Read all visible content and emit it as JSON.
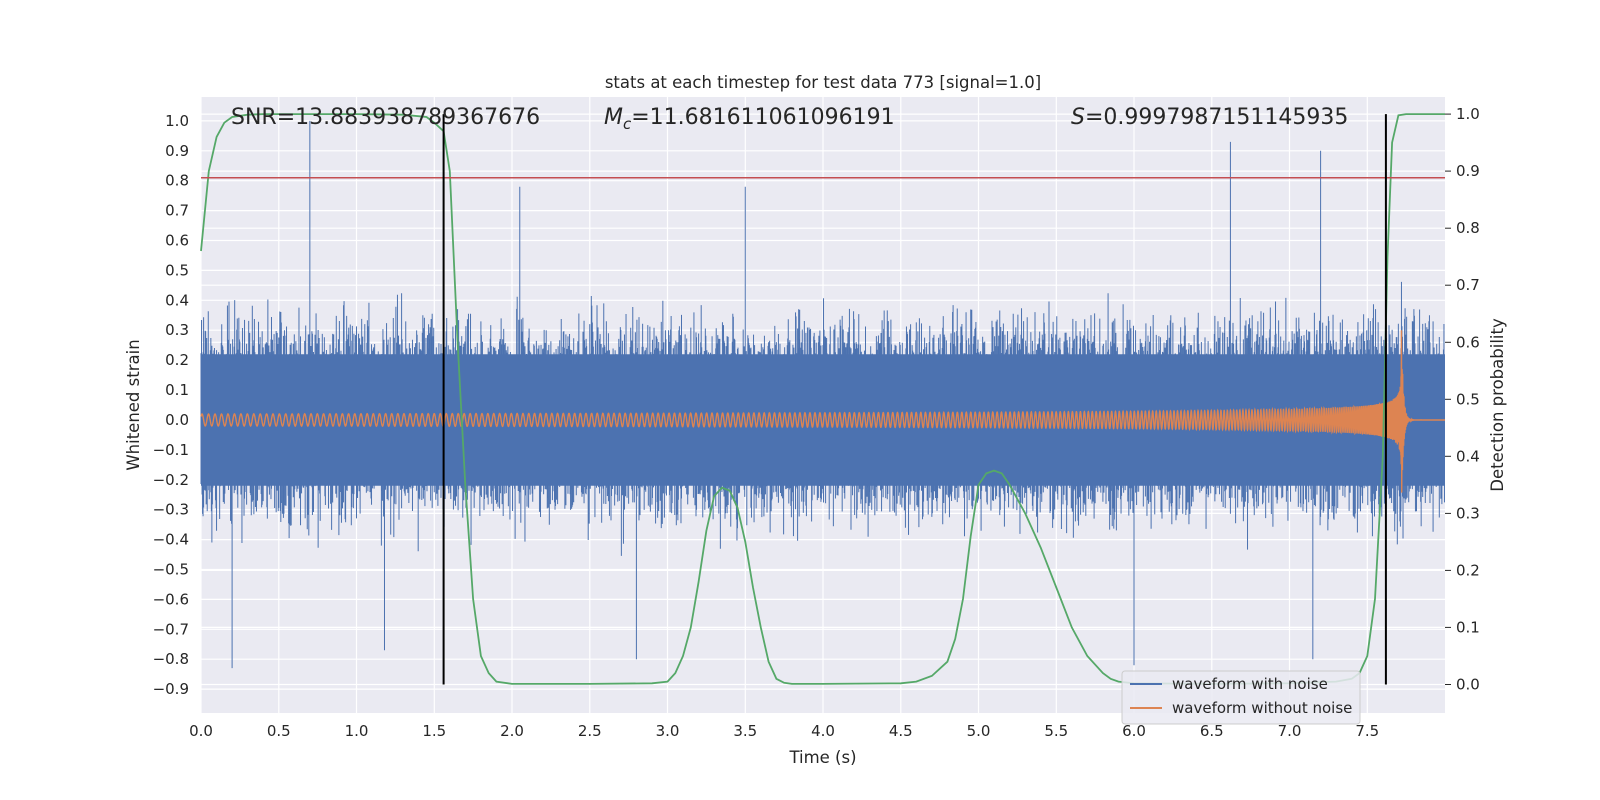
{
  "chart_data": {
    "type": "line",
    "title": "stats at each timestep for test data 773 [signal=1.0]",
    "xlabel": "Time (s)",
    "ylabel": "Whitened strain",
    "y2label": "Detection probability",
    "xlim": [
      0.0,
      8.0
    ],
    "ylim": [
      -0.98,
      1.08
    ],
    "y2lim": [
      -0.05,
      1.03
    ],
    "grid": true,
    "legend_position": "bottom-right",
    "x_ticks": [
      "0.0",
      "0.5",
      "1.0",
      "1.5",
      "2.0",
      "2.5",
      "3.0",
      "3.5",
      "4.0",
      "4.5",
      "5.0",
      "5.5",
      "6.0",
      "6.5",
      "7.0",
      "7.5"
    ],
    "y_ticks": [
      "1.0",
      "0.9",
      "0.8",
      "0.7",
      "0.6",
      "0.5",
      "0.4",
      "0.3",
      "0.2",
      "0.1",
      "0.0",
      "-0.1",
      "-0.2",
      "-0.3",
      "-0.4",
      "-0.5",
      "-0.6",
      "-0.7",
      "-0.8",
      "-0.9"
    ],
    "y2_ticks": [
      "1.0",
      "0.9",
      "0.8",
      "0.7",
      "0.6",
      "0.5",
      "0.4",
      "0.3",
      "0.2",
      "0.1",
      "0.0"
    ],
    "annotations": {
      "snr": "SNR=13.883938789367676",
      "mc_symbol": "M",
      "mc_sub": "c",
      "mc_value": "=11.681611061096191",
      "s_symbol": "S",
      "s_value": "=0.9997987151145935"
    },
    "threshold_line": {
      "y": 0.81,
      "color": "#c44e52"
    },
    "vertical_lines": [
      1.56,
      7.62
    ],
    "series": [
      {
        "name": "waveform with noise",
        "color": "#4c72b0",
        "axis": "left",
        "description_values": {
          "typical_band": [
            -0.3,
            0.3
          ],
          "max": 1.0,
          "min": -0.83
        }
      },
      {
        "name": "waveform without noise",
        "color": "#dd8452",
        "axis": "left",
        "chirp": {
          "start_amplitude": 0.02,
          "merger_time": 7.72,
          "peak_amplitude": 0.61,
          "min_amplitude": -0.48
        }
      },
      {
        "color": "#55a868",
        "axis": "right",
        "x": [
          0.0,
          0.05,
          0.1,
          0.15,
          0.2,
          0.3,
          0.4,
          0.5,
          0.7,
          1.0,
          1.3,
          1.45,
          1.5,
          1.56,
          1.6,
          1.65,
          1.7,
          1.75,
          1.8,
          1.85,
          1.9,
          2.0,
          2.5,
          2.9,
          3.0,
          3.05,
          3.1,
          3.15,
          3.2,
          3.25,
          3.3,
          3.35,
          3.4,
          3.45,
          3.5,
          3.55,
          3.6,
          3.65,
          3.7,
          3.75,
          3.8,
          4.0,
          4.5,
          4.6,
          4.7,
          4.8,
          4.85,
          4.9,
          4.95,
          5.0,
          5.05,
          5.1,
          5.15,
          5.2,
          5.3,
          5.4,
          5.5,
          5.6,
          5.7,
          5.8,
          5.85,
          5.9,
          6.0,
          6.5,
          7.0,
          7.3,
          7.4,
          7.45,
          7.5,
          7.55,
          7.6,
          7.63,
          7.66,
          7.7,
          7.75,
          7.8,
          7.9,
          8.0
        ],
        "values": [
          0.76,
          0.9,
          0.96,
          0.985,
          0.995,
          0.999,
          1.0,
          1.0,
          1.0,
          1.0,
          0.999,
          0.995,
          0.985,
          0.97,
          0.9,
          0.6,
          0.35,
          0.15,
          0.05,
          0.02,
          0.005,
          0.001,
          0.001,
          0.002,
          0.005,
          0.02,
          0.05,
          0.1,
          0.18,
          0.27,
          0.33,
          0.345,
          0.34,
          0.31,
          0.25,
          0.17,
          0.1,
          0.04,
          0.01,
          0.003,
          0.001,
          0.001,
          0.002,
          0.005,
          0.015,
          0.04,
          0.08,
          0.15,
          0.26,
          0.35,
          0.37,
          0.375,
          0.37,
          0.35,
          0.3,
          0.24,
          0.17,
          0.1,
          0.05,
          0.02,
          0.01,
          0.005,
          0.002,
          0.001,
          0.002,
          0.005,
          0.01,
          0.02,
          0.05,
          0.15,
          0.4,
          0.75,
          0.95,
          0.998,
          1.0,
          1.0,
          1.0,
          1.0
        ]
      }
    ]
  }
}
